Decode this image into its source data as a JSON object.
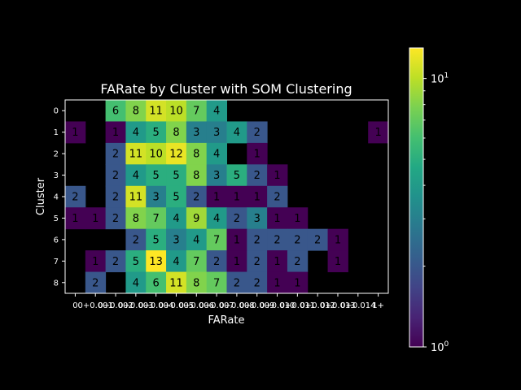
{
  "chart_data": {
    "type": "heatmap",
    "title": "FARate by Cluster with SOM Clustering",
    "xlabel": "FARate",
    "ylabel": "Cluster",
    "x_tick_labels": [
      "0",
      "0+0.001",
      "0+0.002",
      "0+0.003",
      "0+0.004",
      "0+0.005",
      "0+0.006",
      "0+0.007",
      "0+0.008",
      "0+0.009",
      "0+0.010",
      "0+0.011",
      "0+0.012",
      "0+0.013",
      "0+0.014",
      "1+"
    ],
    "y_tick_labels": [
      "0",
      "1",
      "2",
      "3",
      "4",
      "5",
      "6",
      "7",
      "8"
    ],
    "colorscale": "viridis",
    "color_norm": "log",
    "colorbar_ticks": [
      "10^0",
      "10^1"
    ],
    "colorbar_tick_labels": {
      "base": "10",
      "exponents": [
        "0",
        "1"
      ]
    },
    "vmin": 1,
    "vmax": 13,
    "values": [
      [
        null,
        null,
        6,
        8,
        11,
        10,
        7,
        4,
        null,
        null,
        null,
        null,
        null,
        null,
        null,
        null
      ],
      [
        1,
        null,
        1,
        4,
        5,
        8,
        3,
        3,
        4,
        2,
        null,
        null,
        null,
        null,
        null,
        1
      ],
      [
        null,
        null,
        2,
        11,
        10,
        12,
        8,
        4,
        null,
        1,
        null,
        null,
        null,
        null,
        null,
        null
      ],
      [
        null,
        null,
        2,
        4,
        5,
        5,
        8,
        3,
        5,
        2,
        1,
        null,
        null,
        null,
        null,
        null
      ],
      [
        2,
        null,
        2,
        11,
        3,
        5,
        2,
        1,
        1,
        1,
        2,
        null,
        null,
        null,
        null,
        null
      ],
      [
        1,
        1,
        2,
        8,
        7,
        4,
        9,
        4,
        2,
        3,
        1,
        1,
        null,
        null,
        null,
        null
      ],
      [
        null,
        null,
        null,
        2,
        5,
        3,
        4,
        7,
        1,
        2,
        2,
        2,
        2,
        1,
        null,
        null
      ],
      [
        null,
        1,
        2,
        5,
        13,
        4,
        7,
        2,
        1,
        2,
        1,
        2,
        null,
        1,
        null,
        null
      ],
      [
        null,
        2,
        null,
        4,
        6,
        11,
        8,
        7,
        2,
        2,
        1,
        1,
        null,
        null,
        null,
        null
      ]
    ]
  }
}
